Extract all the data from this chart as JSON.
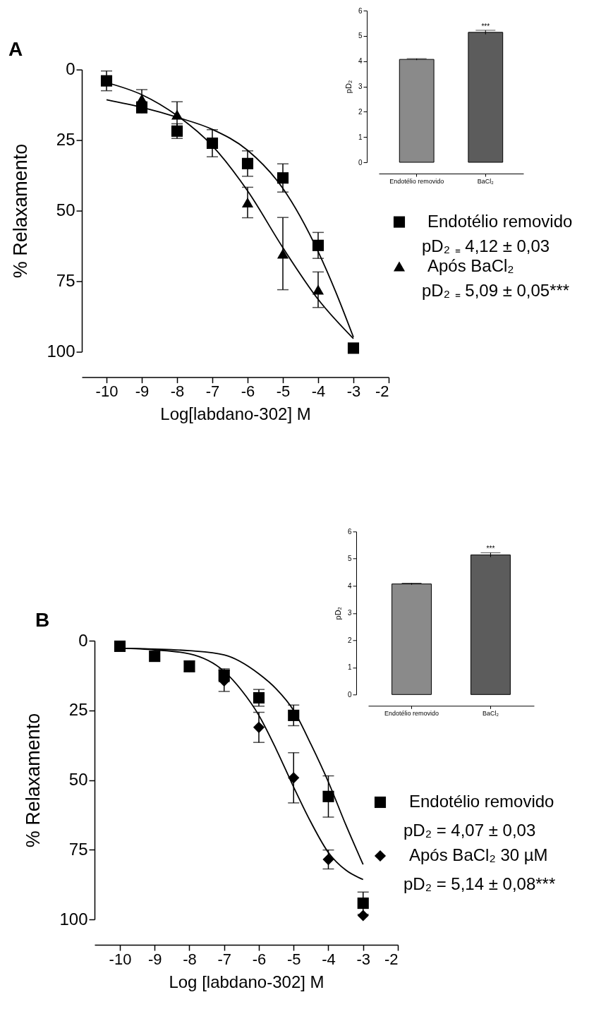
{
  "chart_data": [
    {
      "type": "scatter",
      "title": "A",
      "xlabel": "Log[labdano-302] M",
      "ylabel": "% Relaxamento",
      "xlim": [
        -10.7,
        -2
      ],
      "xticks": [
        -10,
        -9,
        -8,
        -7,
        -6,
        -5,
        -4,
        -3,
        -2
      ],
      "ylim": [
        100,
        0
      ],
      "yticks": [
        0,
        25,
        50,
        75,
        100
      ],
      "legend": "right",
      "annotations": [
        "pD₂ ₌ 4,12 ± 0,03",
        "pD₂ ₌ 5,09 ± 0,05***"
      ],
      "series": [
        {
          "name": "Endotélio removido",
          "color": "#000000",
          "marker": "square",
          "x": [
            -10,
            -9,
            -8,
            -7,
            -6,
            -5,
            -4,
            -3
          ],
          "values": [
            4.0,
            13.4,
            21.8,
            26.1,
            33.3,
            38.4,
            62.3,
            98.7
          ],
          "errors": [
            3.5,
            2,
            2.6,
            4.8,
            4.5,
            5,
            4.6,
            null
          ]
        },
        {
          "name": "Após BaCl₂",
          "color": "#000000",
          "marker": "triangle",
          "x": [
            -9,
            -8,
            -6,
            -5,
            -4
          ],
          "values": [
            10.4,
            16.0,
            47.1,
            65.2,
            78.0
          ],
          "errors": [
            3.3,
            4.6,
            5.4,
            12.8,
            6.3
          ]
        },
        {
          "type": "line",
          "color": "#000000",
          "x": [
            -10,
            -9,
            -8,
            -7,
            -6,
            -5,
            -4,
            -3.5,
            -3
          ],
          "values": [
            10.7,
            13.4,
            16.9,
            21.2,
            28.6,
            42.1,
            64.5,
            78.8,
            94.8
          ]
        },
        {
          "type": "line",
          "color": "#000000",
          "x": [
            -10,
            -9,
            -8,
            -7,
            -6,
            -5,
            -4,
            -3
          ],
          "values": [
            4.6,
            8.9,
            16.3,
            27,
            43,
            63.1,
            81.4,
            95.3
          ]
        }
      ]
    },
    {
      "type": "bar",
      "ylabel": "pD₂",
      "categories": [
        "Endotélio removido",
        "BaCl₂"
      ],
      "values": [
        4.07,
        5.14
      ],
      "errors": [
        0.03,
        0.08
      ],
      "colors": [
        "#8a8a8a",
        "#5c5c5c"
      ],
      "ylim": [
        0,
        6
      ],
      "yticks": [
        0,
        1,
        2,
        3,
        4,
        5,
        6
      ],
      "annotations": [
        {
          "text": "***",
          "x": "BaCl₂",
          "y": 5.22
        }
      ]
    },
    {
      "type": "scatter",
      "title": "B",
      "xlabel": "Log [labdano-302] M",
      "ylabel": "% Relaxamento",
      "xlim": [
        -10.73,
        -2
      ],
      "xticks": [
        -10,
        -9,
        -8,
        -7,
        -6,
        -5,
        -4,
        -3,
        -2
      ],
      "ylim": [
        100,
        0
      ],
      "yticks": [
        0,
        25,
        50,
        75,
        100
      ],
      "legend": "right",
      "annotations": [
        "pD₂ = 4,07 ± 0,03",
        "pD₂ = 5,14 ± 0,08***"
      ],
      "series": [
        {
          "name": "Endotélio removido",
          "color": "#000000",
          "marker": "square",
          "x": [
            -10,
            -9,
            -8,
            -7,
            -6,
            -5,
            -4,
            -3
          ],
          "values": [
            2.0,
            5.6,
            9.2,
            12.4,
            20.5,
            26.8,
            55.9,
            94.2
          ],
          "errors": [
            null,
            null,
            2,
            2.3,
            3,
            3.7,
            7.4,
            4
          ]
        },
        {
          "name": "Após  BaCl₂ 30 µM",
          "color": "#000000",
          "marker": "diamond",
          "x": [
            -7,
            -6,
            -5,
            -4,
            -3
          ],
          "values": [
            14.4,
            31.1,
            49.2,
            78.5,
            98.6
          ],
          "errors": [
            3.8,
            5.4,
            9,
            3.4,
            null
          ]
        },
        {
          "type": "line",
          "color": "#000000",
          "x": [
            -10,
            -9,
            -8,
            -7,
            -6,
            -5.5,
            -5,
            -4.5,
            -4,
            -3.5,
            -3
          ],
          "values": [
            2.7,
            3.0,
            3.6,
            5.1,
            11.9,
            17.3,
            25,
            37.2,
            50.7,
            66,
            80.3
          ]
        },
        {
          "type": "line",
          "color": "#000000",
          "x": [
            -10,
            -9,
            -8,
            -7,
            -6.5,
            -6,
            -5.5,
            -5,
            -4.5,
            -4,
            -3.5,
            -3
          ],
          "values": [
            2.7,
            3.3,
            4.7,
            11,
            17.8,
            26.8,
            39,
            52.5,
            65.2,
            76,
            82.3,
            85.7
          ]
        }
      ]
    },
    {
      "type": "bar",
      "ylabel": "pD₂",
      "categories": [
        "Endotélio removido",
        "BaCl₂"
      ],
      "values": [
        4.07,
        5.14
      ],
      "errors": [
        0.03,
        0.08
      ],
      "colors": [
        "#8a8a8a",
        "#5c5c5c"
      ],
      "ylim": [
        0,
        6
      ],
      "yticks": [
        0,
        1,
        2,
        3,
        4,
        5,
        6
      ],
      "annotations": [
        {
          "text": "***",
          "x": "BaCl₂",
          "y": 5.22
        }
      ]
    }
  ]
}
